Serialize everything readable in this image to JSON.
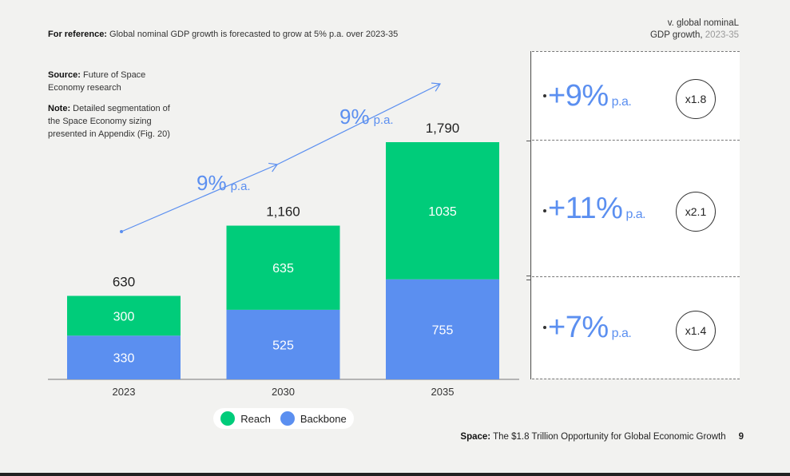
{
  "reference": {
    "label": "For reference:",
    "text": "Global nominal GDP growth is forecasted to grow at 5% p.a. over 2023-35"
  },
  "source": {
    "label": "Source:",
    "text": "Future of Space Economy research"
  },
  "note": {
    "label": "Note:",
    "text": "Detailed segmentation of the Space Economy sizing presented in Appendix (Fig. 20)"
  },
  "gdp_header": {
    "line1": "v. global nominaL",
    "line2": "GDP growth,",
    "period": "2023-35"
  },
  "growth_rows": [
    {
      "rate": "+9%",
      "pa": "p.a.",
      "multiplier": "x1.8"
    },
    {
      "rate": "+11%",
      "pa": "p.a.",
      "multiplier": "x2.1"
    },
    {
      "rate": "+7%",
      "pa": "p.a.",
      "multiplier": "x1.4"
    }
  ],
  "legend": {
    "reach": "Reach",
    "backbone": "Backbone"
  },
  "footer": {
    "label": "Space:",
    "text": "The $1.8 Trillion Opportunity for Global Economic Growth",
    "page": "9"
  },
  "colors": {
    "reach": "#00cc7a",
    "backbone": "#5b8ff0",
    "accent": "#5b8ff0"
  },
  "chart_data": {
    "type": "bar",
    "stacked": true,
    "categories": [
      "2023",
      "2030",
      "2035"
    ],
    "series": [
      {
        "name": "Backbone",
        "values": [
          330,
          525,
          755
        ]
      },
      {
        "name": "Reach",
        "values": [
          300,
          635,
          1035
        ]
      }
    ],
    "totals": [
      "630",
      "1,160",
      "1,790"
    ],
    "ylim": [
      0,
      1790
    ],
    "cagr_annotations": [
      {
        "value": "9%",
        "unit": "p.a.",
        "between": [
          "2023",
          "2030"
        ]
      },
      {
        "value": "9%",
        "unit": "p.a.",
        "between": [
          "2030",
          "2035"
        ]
      }
    ],
    "title": "",
    "xlabel": "",
    "ylabel": ""
  }
}
